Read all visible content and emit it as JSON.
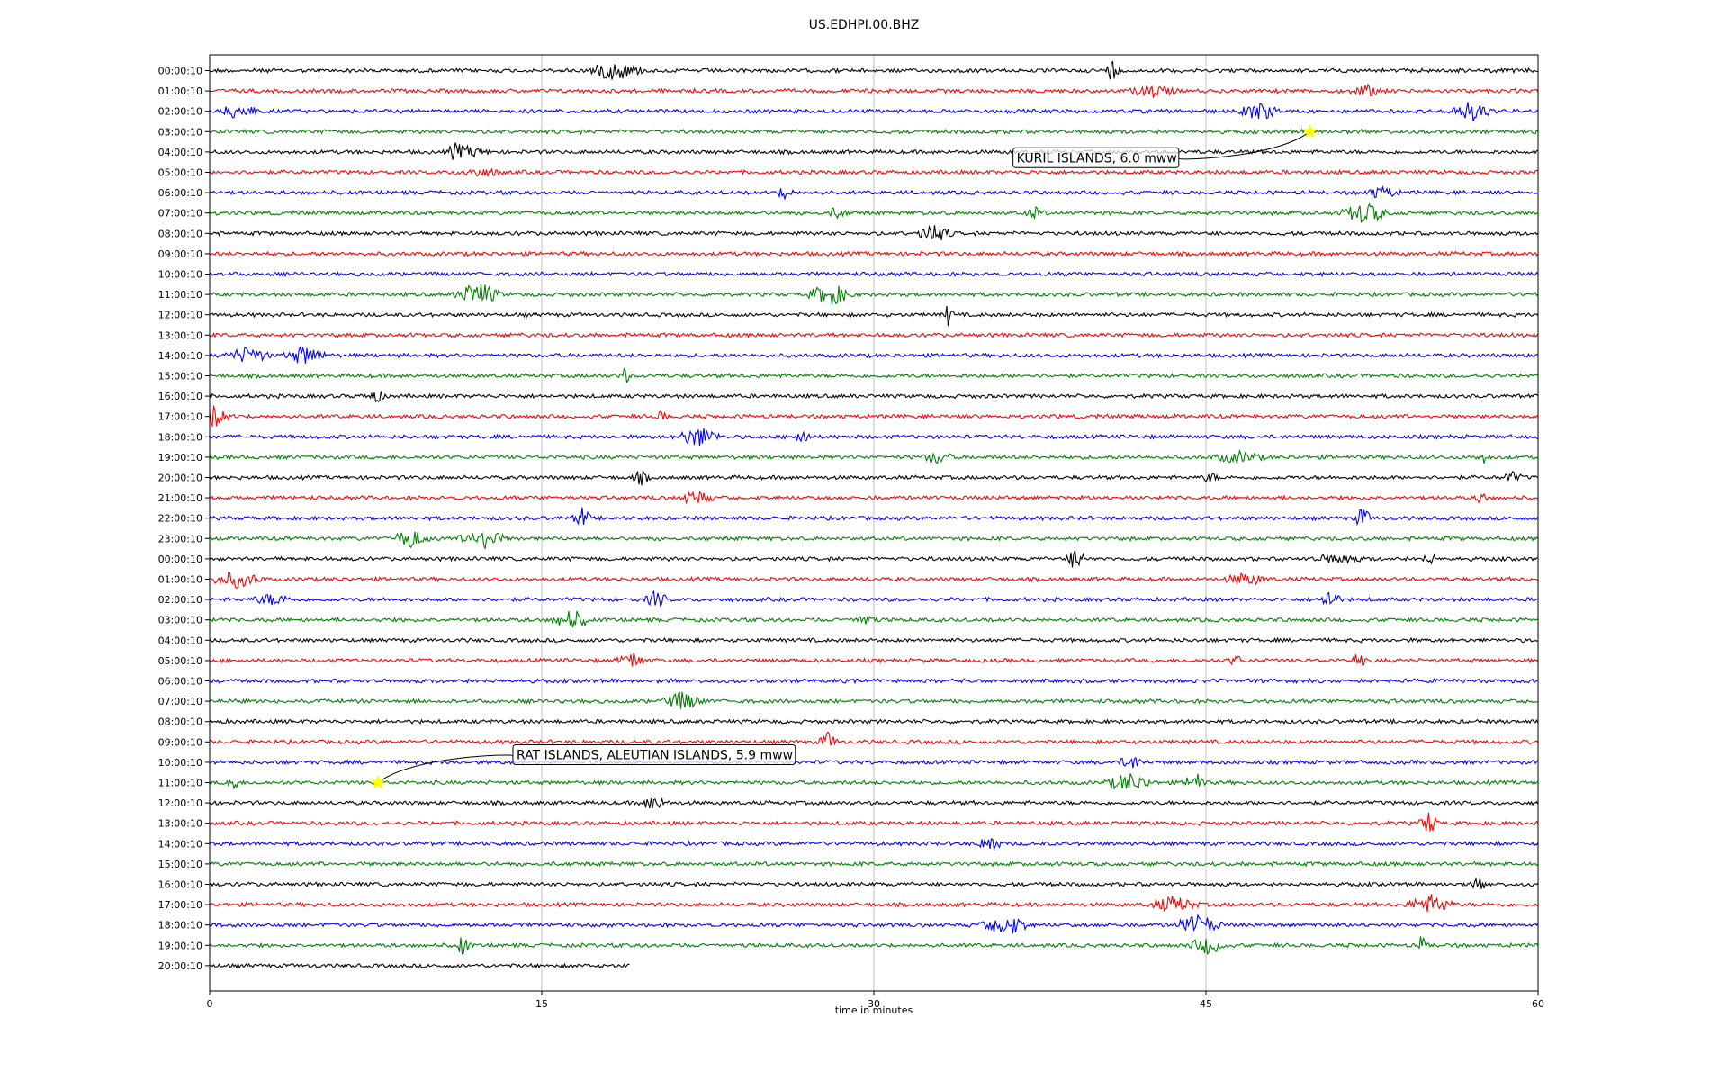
{
  "chart_data": {
    "type": "line",
    "title": "US.EDHPI.00.BHZ",
    "xlabel": "time in minutes",
    "ylabel": "",
    "xlim": [
      0,
      60
    ],
    "x_ticks": [
      "0",
      "15",
      "30",
      "45",
      "60"
    ],
    "x_tick_values": [
      0,
      15,
      30,
      45,
      60
    ],
    "grid": "vertical",
    "trace_colors": [
      "#000000",
      "#ff0000",
      "#0000ff",
      "#008000"
    ],
    "row_labels": [
      "00:00:10",
      "01:00:10",
      "02:00:10",
      "03:00:10",
      "04:00:10",
      "05:00:10",
      "06:00:10",
      "07:00:10",
      "08:00:10",
      "09:00:10",
      "10:00:10",
      "11:00:10",
      "12:00:10",
      "13:00:10",
      "14:00:10",
      "15:00:10",
      "16:00:10",
      "17:00:10",
      "18:00:10",
      "19:00:10",
      "20:00:10",
      "21:00:10",
      "22:00:10",
      "23:00:10",
      "00:00:10",
      "01:00:10",
      "02:00:10",
      "03:00:10",
      "04:00:10",
      "05:00:10",
      "06:00:10",
      "07:00:10",
      "08:00:10",
      "09:00:10",
      "10:00:10",
      "11:00:10",
      "12:00:10",
      "13:00:10",
      "14:00:10",
      "15:00:10",
      "16:00:10",
      "17:00:10",
      "18:00:10",
      "19:00:10",
      "20:00:10"
    ],
    "last_row_end_minute": 19,
    "events": [
      {
        "label": "KURIL ISLANDS, 6.0 mww",
        "row": 3,
        "minute": 49.7
      },
      {
        "label": "RAT ISLANDS, ALEUTIAN ISLANDS, 5.9 mww",
        "row": 35,
        "minute": 7.6
      }
    ]
  }
}
